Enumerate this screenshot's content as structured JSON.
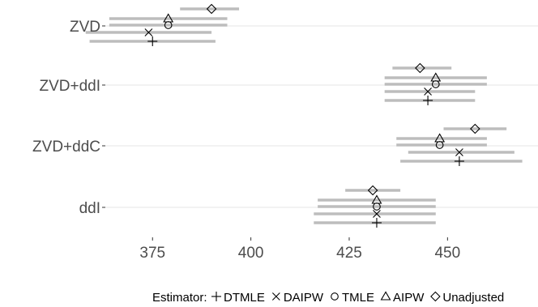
{
  "chart_data": {
    "type": "scatter",
    "subtype": "forest-plot",
    "xlim": [
      363,
      473
    ],
    "x_ticks": [
      375,
      400,
      425,
      450
    ],
    "grid": "horizontal-major",
    "categories": [
      "ZVD",
      "ZVD+ddI",
      "ZVD+ddC",
      "ddI"
    ],
    "legend": {
      "position": "bottom",
      "title": "Estimator:",
      "entries": [
        {
          "label": "DTMLE",
          "shape": "plus"
        },
        {
          "label": "DAIPW",
          "shape": "cross"
        },
        {
          "label": "TMLE",
          "shape": "circle"
        },
        {
          "label": "AIPW",
          "shape": "triangle"
        },
        {
          "label": "Unadjusted",
          "shape": "diamond"
        }
      ]
    },
    "interval_color": "#bdbdbd",
    "groups": [
      {
        "category": "ZVD",
        "estimates": [
          {
            "estimator": "DTMLE",
            "estimate": 375,
            "lower": 359,
            "upper": 391
          },
          {
            "estimator": "DAIPW",
            "estimate": 374,
            "lower": 358,
            "upper": 390
          },
          {
            "estimator": "TMLE",
            "estimate": 379,
            "lower": 364,
            "upper": 394
          },
          {
            "estimator": "AIPW",
            "estimate": 379,
            "lower": 364,
            "upper": 394
          },
          {
            "estimator": "Unadjusted",
            "estimate": 390,
            "lower": 382,
            "upper": 397
          }
        ]
      },
      {
        "category": "ZVD+ddI",
        "estimates": [
          {
            "estimator": "DTMLE",
            "estimate": 445,
            "lower": 434,
            "upper": 457
          },
          {
            "estimator": "DAIPW",
            "estimate": 445,
            "lower": 434,
            "upper": 457
          },
          {
            "estimator": "TMLE",
            "estimate": 447,
            "lower": 434,
            "upper": 460
          },
          {
            "estimator": "AIPW",
            "estimate": 447,
            "lower": 434,
            "upper": 460
          },
          {
            "estimator": "Unadjusted",
            "estimate": 443,
            "lower": 436,
            "upper": 451
          }
        ]
      },
      {
        "category": "ZVD+ddC",
        "estimates": [
          {
            "estimator": "DTMLE",
            "estimate": 453,
            "lower": 438,
            "upper": 469
          },
          {
            "estimator": "DAIPW",
            "estimate": 453,
            "lower": 440,
            "upper": 467
          },
          {
            "estimator": "TMLE",
            "estimate": 448,
            "lower": 437,
            "upper": 460
          },
          {
            "estimator": "AIPW",
            "estimate": 448,
            "lower": 437,
            "upper": 460
          },
          {
            "estimator": "Unadjusted",
            "estimate": 457,
            "lower": 449,
            "upper": 465
          }
        ]
      },
      {
        "category": "ddI",
        "estimates": [
          {
            "estimator": "DTMLE",
            "estimate": 432,
            "lower": 416,
            "upper": 447
          },
          {
            "estimator": "DAIPW",
            "estimate": 432,
            "lower": 416,
            "upper": 447
          },
          {
            "estimator": "TMLE",
            "estimate": 432,
            "lower": 417,
            "upper": 447
          },
          {
            "estimator": "AIPW",
            "estimate": 432,
            "lower": 417,
            "upper": 447
          },
          {
            "estimator": "Unadjusted",
            "estimate": 431,
            "lower": 424,
            "upper": 438
          }
        ]
      }
    ]
  }
}
